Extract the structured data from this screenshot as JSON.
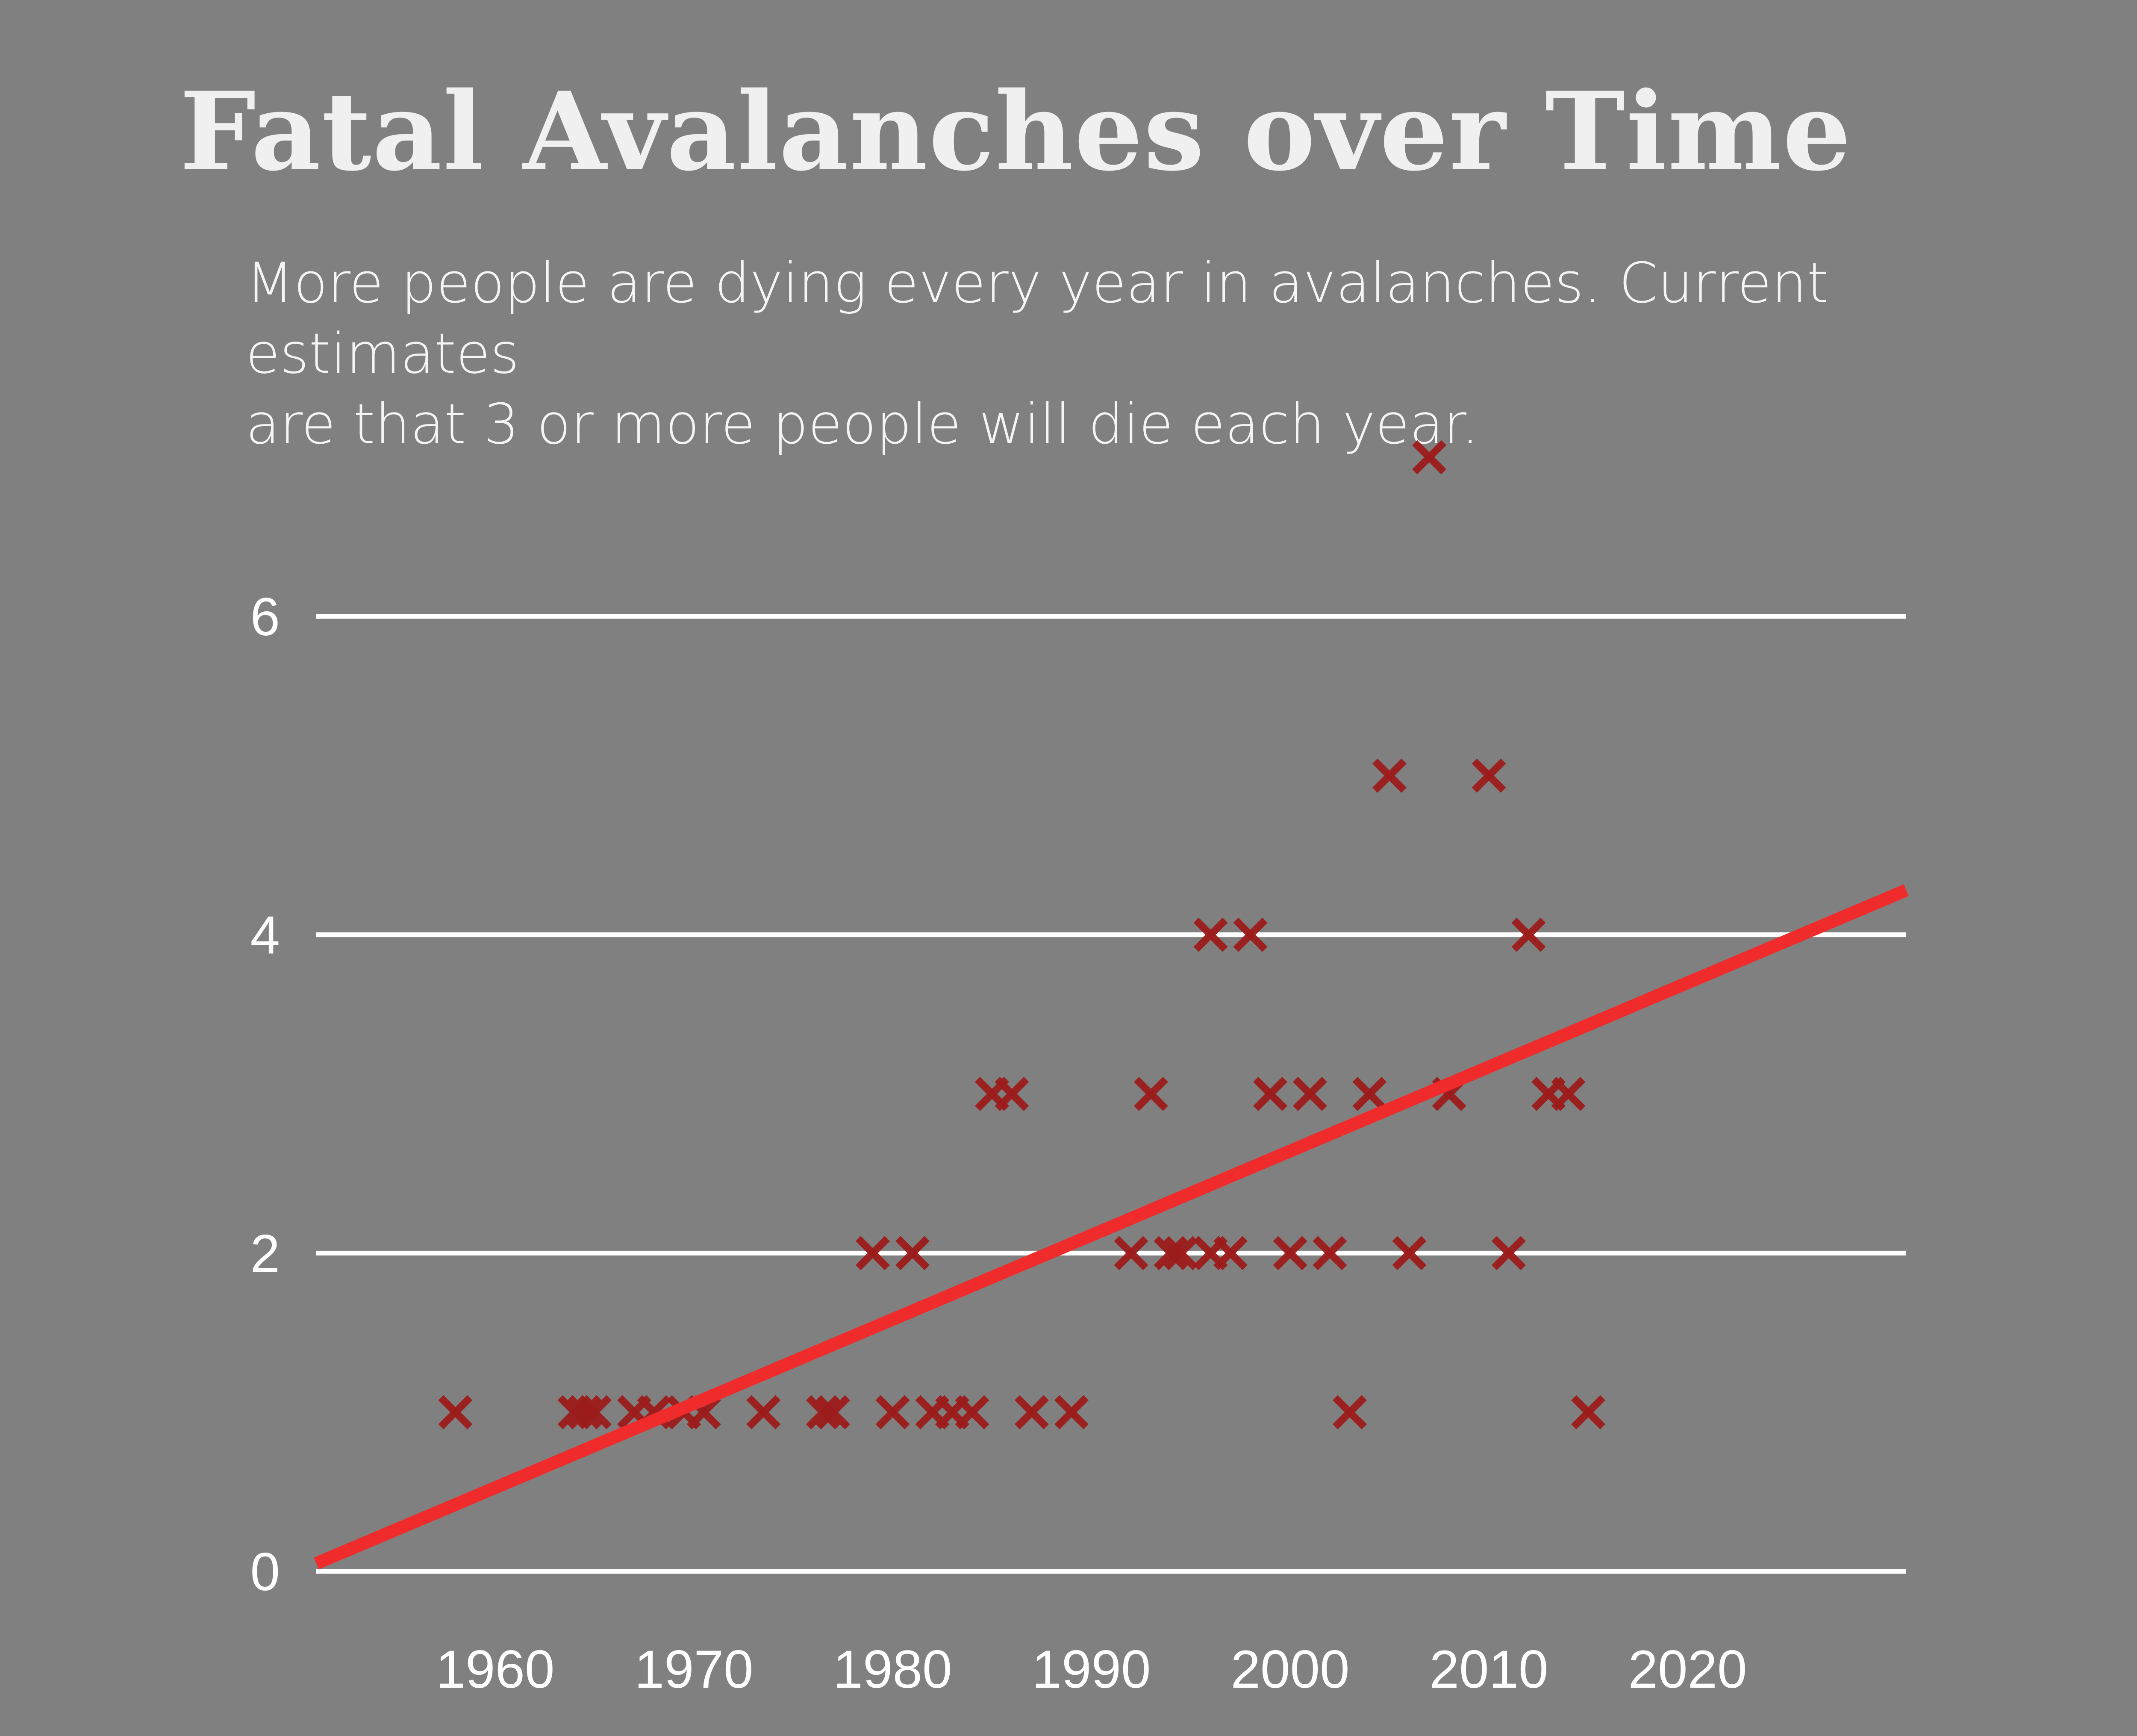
{
  "chart_data": {
    "type": "scatter",
    "title": "Fatal Avalanches over Time",
    "subtitle_lines": [
      "More people are dying every year in avalanches. Current estimates",
      "are that 3 or more people will die each year."
    ],
    "xlabel": "",
    "ylabel": "",
    "x_ticks": [
      1960,
      1970,
      1980,
      1990,
      2000,
      2010,
      2020
    ],
    "y_ticks": [
      0,
      2,
      4,
      6
    ],
    "xlim": [
      1951,
      2031
    ],
    "ylim": [
      0,
      6
    ],
    "grid": true,
    "marker": "x",
    "points": [
      [
        1958,
        1
      ],
      [
        1964,
        1
      ],
      [
        1964.5,
        1
      ],
      [
        1965,
        1
      ],
      [
        1967,
        1
      ],
      [
        1968,
        1
      ],
      [
        1969.5,
        1
      ],
      [
        1970.5,
        1
      ],
      [
        1973.5,
        1
      ],
      [
        1976.5,
        1
      ],
      [
        1977,
        1
      ],
      [
        1980,
        1
      ],
      [
        1982,
        1
      ],
      [
        1983,
        1
      ],
      [
        1984,
        1
      ],
      [
        1987,
        1
      ],
      [
        1989,
        1
      ],
      [
        2003,
        1
      ],
      [
        2015,
        1
      ],
      [
        1979,
        2
      ],
      [
        1981,
        2
      ],
      [
        1992,
        2
      ],
      [
        1994,
        2
      ],
      [
        1994.5,
        2
      ],
      [
        1996,
        2
      ],
      [
        1997,
        2
      ],
      [
        2000,
        2
      ],
      [
        2002,
        2
      ],
      [
        2006,
        2
      ],
      [
        2011,
        2
      ],
      [
        1985,
        3
      ],
      [
        1986,
        3
      ],
      [
        1993,
        3
      ],
      [
        1999,
        3
      ],
      [
        2001,
        3
      ],
      [
        2004,
        3
      ],
      [
        2008,
        3
      ],
      [
        2013,
        3
      ],
      [
        2014,
        3
      ],
      [
        1996,
        4
      ],
      [
        1998,
        4
      ],
      [
        2012,
        4
      ],
      [
        2005,
        5
      ],
      [
        2010,
        5
      ],
      [
        2007,
        7
      ]
    ],
    "trendline": {
      "x": [
        1951,
        2031
      ],
      "y": [
        0.05,
        4.28
      ]
    },
    "colors": {
      "background": "#808080",
      "marker": "#9c1b1b",
      "trendline": "#ef2b2b",
      "grid": "#ffffff",
      "text": "#ffffff"
    }
  }
}
